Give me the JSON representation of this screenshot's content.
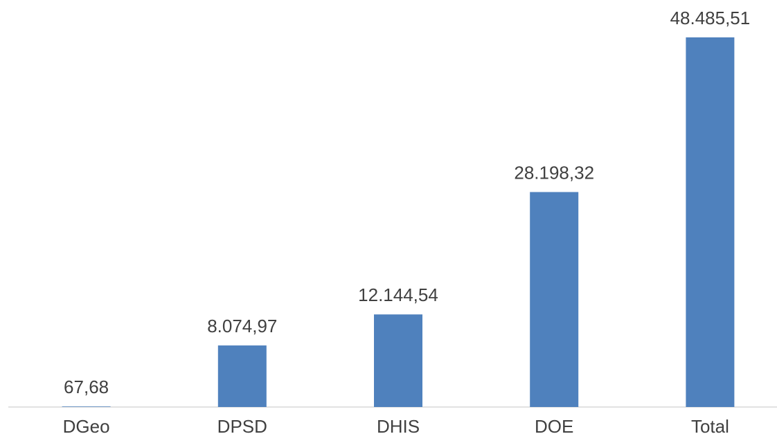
{
  "chart_data": {
    "type": "bar",
    "categories": [
      "DGeo",
      "DPSD",
      "DHIS",
      "DOE",
      "Total"
    ],
    "values": [
      67.68,
      8074.97,
      12144.54,
      28198.32,
      48485.51
    ],
    "value_labels": [
      "67,68",
      "8.074,97",
      "12.144,54",
      "28.198,32",
      "48.485,51"
    ],
    "color": "#4f81bd"
  }
}
